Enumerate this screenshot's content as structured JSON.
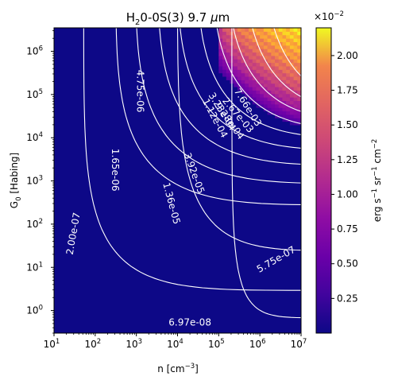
{
  "chart_data": {
    "type": "heatmap",
    "title": "H₂0-0S(3) 9.7 μm",
    "title_parts": {
      "prefix": "H",
      "sub": "2",
      "middle": "0-0S(3) 9.7 ",
      "mu": "μ",
      "suffix": "m"
    },
    "xlabel_parts": {
      "prefix": "n [cm",
      "sup": "−3",
      "suffix": "]"
    },
    "ylabel_parts": {
      "prefix": "G",
      "sub": "0",
      "suffix": " [Habing]"
    },
    "x_scale": "log",
    "y_scale": "log",
    "xlim": [
      10,
      10000000
    ],
    "ylim": [
      0.3,
      3500000
    ],
    "x_ticks": [
      {
        "value": 10,
        "base": "10",
        "exp": "1"
      },
      {
        "value": 100,
        "base": "10",
        "exp": "2"
      },
      {
        "value": 1000,
        "base": "10",
        "exp": "3"
      },
      {
        "value": 10000,
        "base": "10",
        "exp": "4"
      },
      {
        "value": 100000,
        "base": "10",
        "exp": "5"
      },
      {
        "value": 1000000,
        "base": "10",
        "exp": "6"
      },
      {
        "value": 10000000,
        "base": "10",
        "exp": "7"
      }
    ],
    "y_ticks": [
      {
        "value": 1,
        "base": "10",
        "exp": "0"
      },
      {
        "value": 10,
        "base": "10",
        "exp": "1"
      },
      {
        "value": 100,
        "base": "10",
        "exp": "2"
      },
      {
        "value": 1000,
        "base": "10",
        "exp": "3"
      },
      {
        "value": 10000,
        "base": "10",
        "exp": "4"
      },
      {
        "value": 100000,
        "base": "10",
        "exp": "5"
      },
      {
        "value": 1000000,
        "base": "10",
        "exp": "6"
      }
    ],
    "colormap": "plasma",
    "colorbar": {
      "label_parts": {
        "prefix": "erg s",
        "sup1": "−1",
        "mid1": " sr",
        "sup2": "−1",
        "mid2": " cm",
        "sup3": "−2"
      },
      "multiplier_parts": {
        "prefix": "×10",
        "sup": "−2"
      },
      "range": [
        0.0,
        2.2
      ],
      "ticks": [
        {
          "value": 0.25,
          "label": "0.25"
        },
        {
          "value": 0.5,
          "label": "0.50"
        },
        {
          "value": 0.75,
          "label": "0.75"
        },
        {
          "value": 1.0,
          "label": "1.00"
        },
        {
          "value": 1.25,
          "label": "1.25"
        },
        {
          "value": 1.5,
          "label": "1.50"
        },
        {
          "value": 1.75,
          "label": "1.75"
        },
        {
          "value": 2.0,
          "label": "2.00"
        }
      ]
    },
    "heatmap_bright_region": {
      "x_range": [
        100000,
        10000000
      ],
      "y_range": [
        20000,
        3500000
      ],
      "peak_value": 2.2
    },
    "contours": [
      {
        "level": "6.97e-08",
        "label_at": [
          20000,
          0.52
        ]
      },
      {
        "level": "2.00e-07",
        "label_at": [
          30,
          60
        ]
      },
      {
        "level": "5.75e-07",
        "label_at": [
          2500000,
          15
        ]
      },
      {
        "level": "1.65e-06",
        "label_at": [
          300,
          1800
        ]
      },
      {
        "level": "4.75e-06",
        "label_at": [
          1200,
          120000
        ]
      },
      {
        "level": "1.36e-05",
        "label_at": [
          7000,
          300
        ]
      },
      {
        "level": "3.92e-05",
        "label_at": [
          25000,
          1500
        ]
      },
      {
        "level": "1.12e-04",
        "label_at": [
          80000,
          28000
        ]
      },
      {
        "level": "3.23e-04",
        "label_at": [
          120000,
          40000
        ]
      },
      {
        "level": "9.28e-04",
        "label_at": [
          180000,
          24000
        ]
      },
      {
        "level": "2.67e-03",
        "label_at": [
          290000,
          33000
        ]
      },
      {
        "level": "7.66e-03",
        "label_at": [
          500000,
          50000
        ]
      }
    ]
  }
}
